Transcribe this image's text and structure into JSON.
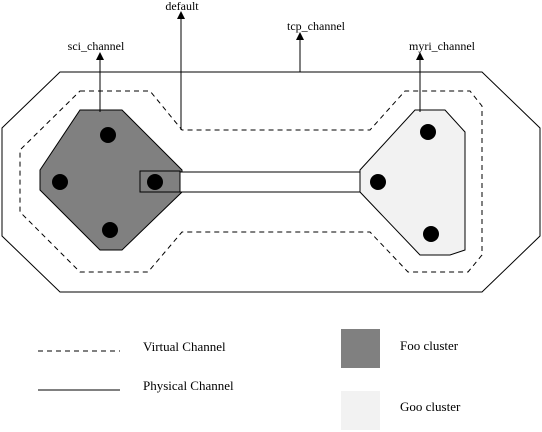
{
  "labels": {
    "default": "default",
    "tcp_channel": "tcp_channel",
    "sci_channel": "sci_channel",
    "myri_channel": "myri_channel"
  },
  "legend": {
    "virtual_channel": "Virtual Channel",
    "physical_channel": "Physical Channel",
    "foo_cluster": "Foo cluster",
    "goo_cluster": "Goo cluster"
  },
  "colors": {
    "foo_cluster": "#808080",
    "goo_cluster": "#f2f2f2",
    "line": "#000000"
  }
}
